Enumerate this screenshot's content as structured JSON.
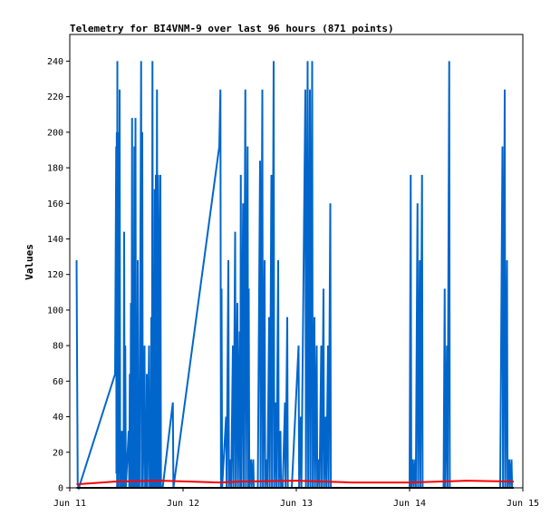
{
  "chart_data": {
    "type": "line",
    "title": "Telemetry for BI4VNM-9 over last 96 hours (871 points)",
    "xlabel": "",
    "ylabel": "Values",
    "x_range": [
      "2023-06-11",
      "2023-06-15"
    ],
    "x_ticks": [
      "Jun 11",
      "Jun 12",
      "Jun 13",
      "Jun 14",
      "Jun 15"
    ],
    "ylim": [
      0,
      255
    ],
    "y_ticks": [
      0,
      20,
      40,
      60,
      80,
      100,
      120,
      140,
      160,
      180,
      200,
      220,
      240
    ],
    "grid": false,
    "legend": "none",
    "series": [
      {
        "color": "#0066cc",
        "x_unit": "days since Jun 11",
        "points": [
          [
            0.06,
            128
          ],
          [
            0.07,
            2
          ],
          [
            0.08,
            0
          ],
          [
            0.4,
            64
          ],
          [
            0.41,
            192
          ],
          [
            0.412,
            8
          ],
          [
            0.415,
            200
          ],
          [
            0.418,
            0
          ],
          [
            0.42,
            240
          ],
          [
            0.423,
            4
          ],
          [
            0.425,
            160
          ],
          [
            0.428,
            0
          ],
          [
            0.432,
            200
          ],
          [
            0.435,
            8
          ],
          [
            0.44,
            224
          ],
          [
            0.445,
            0
          ],
          [
            0.45,
            16
          ],
          [
            0.455,
            0
          ],
          [
            0.46,
            32
          ],
          [
            0.465,
            0
          ],
          [
            0.47,
            16
          ],
          [
            0.475,
            0
          ],
          [
            0.48,
            144
          ],
          [
            0.485,
            0
          ],
          [
            0.49,
            80
          ],
          [
            0.495,
            0
          ],
          [
            0.52,
            32
          ],
          [
            0.525,
            0
          ],
          [
            0.53,
            64
          ],
          [
            0.535,
            0
          ],
          [
            0.54,
            104
          ],
          [
            0.545,
            0
          ],
          [
            0.55,
            208
          ],
          [
            0.555,
            0
          ],
          [
            0.56,
            80
          ],
          [
            0.565,
            0
          ],
          [
            0.57,
            192
          ],
          [
            0.575,
            0
          ],
          [
            0.58,
            208
          ],
          [
            0.585,
            0
          ],
          [
            0.59,
            80
          ],
          [
            0.595,
            0
          ],
          [
            0.6,
            128
          ],
          [
            0.605,
            0
          ],
          [
            0.61,
            16
          ],
          [
            0.615,
            0
          ],
          [
            0.63,
            240
          ],
          [
            0.635,
            0
          ],
          [
            0.64,
            200
          ],
          [
            0.645,
            0
          ],
          [
            0.66,
            80
          ],
          [
            0.665,
            0
          ],
          [
            0.67,
            16
          ],
          [
            0.675,
            0
          ],
          [
            0.68,
            64
          ],
          [
            0.685,
            0
          ],
          [
            0.7,
            80
          ],
          [
            0.705,
            0
          ],
          [
            0.71,
            16
          ],
          [
            0.715,
            0
          ],
          [
            0.72,
            96
          ],
          [
            0.725,
            0
          ],
          [
            0.73,
            240
          ],
          [
            0.735,
            0
          ],
          [
            0.74,
            80
          ],
          [
            0.745,
            0
          ],
          [
            0.75,
            168
          ],
          [
            0.755,
            0
          ],
          [
            0.76,
            176
          ],
          [
            0.765,
            0
          ],
          [
            0.77,
            224
          ],
          [
            0.775,
            0
          ],
          [
            0.78,
            176
          ],
          [
            0.785,
            128
          ],
          [
            0.79,
            0
          ],
          [
            0.8,
            176
          ],
          [
            0.805,
            0
          ],
          [
            0.82,
            0
          ],
          [
            0.91,
            48
          ],
          [
            0.915,
            0
          ],
          [
            1.32,
            192
          ],
          [
            1.33,
            224
          ],
          [
            1.335,
            0
          ],
          [
            1.34,
            112
          ],
          [
            1.345,
            0
          ],
          [
            1.38,
            40
          ],
          [
            1.385,
            0
          ],
          [
            1.4,
            128
          ],
          [
            1.405,
            0
          ],
          [
            1.42,
            16
          ],
          [
            1.425,
            0
          ],
          [
            1.44,
            80
          ],
          [
            1.445,
            0
          ],
          [
            1.46,
            144
          ],
          [
            1.465,
            0
          ],
          [
            1.48,
            104
          ],
          [
            1.485,
            0
          ],
          [
            1.5,
            88
          ],
          [
            1.505,
            0
          ],
          [
            1.51,
            176
          ],
          [
            1.515,
            0
          ],
          [
            1.53,
            160
          ],
          [
            1.535,
            0
          ],
          [
            1.55,
            224
          ],
          [
            1.555,
            0
          ],
          [
            1.57,
            192
          ],
          [
            1.575,
            0
          ],
          [
            1.58,
            112
          ],
          [
            1.585,
            0
          ],
          [
            1.6,
            16
          ],
          [
            1.605,
            0
          ],
          [
            1.62,
            16
          ],
          [
            1.625,
            0
          ],
          [
            1.64,
            0
          ],
          [
            1.66,
            0
          ],
          [
            1.68,
            184
          ],
          [
            1.685,
            0
          ],
          [
            1.7,
            224
          ],
          [
            1.705,
            0
          ],
          [
            1.72,
            128
          ],
          [
            1.725,
            0
          ],
          [
            1.74,
            16
          ],
          [
            1.745,
            0
          ],
          [
            1.76,
            96
          ],
          [
            1.765,
            0
          ],
          [
            1.78,
            176
          ],
          [
            1.785,
            0
          ],
          [
            1.8,
            240
          ],
          [
            1.805,
            0
          ],
          [
            1.82,
            48
          ],
          [
            1.825,
            0
          ],
          [
            1.84,
            128
          ],
          [
            1.845,
            0
          ],
          [
            1.86,
            32
          ],
          [
            1.865,
            0
          ],
          [
            1.88,
            0
          ],
          [
            1.9,
            48
          ],
          [
            1.905,
            0
          ],
          [
            1.92,
            96
          ],
          [
            1.925,
            0
          ],
          [
            1.96,
            0
          ],
          [
            2.02,
            80
          ],
          [
            2.025,
            0
          ],
          [
            2.04,
            40
          ],
          [
            2.045,
            0
          ],
          [
            2.08,
            224
          ],
          [
            2.085,
            0
          ],
          [
            2.1,
            240
          ],
          [
            2.105,
            0
          ],
          [
            2.12,
            224
          ],
          [
            2.125,
            0
          ],
          [
            2.14,
            240
          ],
          [
            2.145,
            0
          ],
          [
            2.16,
            96
          ],
          [
            2.165,
            0
          ],
          [
            2.18,
            80
          ],
          [
            2.185,
            0
          ],
          [
            2.2,
            16
          ],
          [
            2.205,
            0
          ],
          [
            2.22,
            80
          ],
          [
            2.225,
            0
          ],
          [
            2.24,
            112
          ],
          [
            2.245,
            0
          ],
          [
            2.26,
            40
          ],
          [
            2.265,
            0
          ],
          [
            2.28,
            80
          ],
          [
            2.285,
            0
          ],
          [
            2.3,
            160
          ],
          [
            2.305,
            0
          ],
          [
            2.32,
            0
          ],
          [
            3.0,
            0
          ],
          [
            3.01,
            176
          ],
          [
            3.015,
            0
          ],
          [
            3.03,
            16
          ],
          [
            3.035,
            0
          ],
          [
            3.05,
            16
          ],
          [
            3.055,
            0
          ],
          [
            3.07,
            160
          ],
          [
            3.075,
            0
          ],
          [
            3.09,
            128
          ],
          [
            3.095,
            0
          ],
          [
            3.11,
            176
          ],
          [
            3.115,
            0
          ],
          [
            3.13,
            0
          ],
          [
            3.3,
            0
          ],
          [
            3.31,
            112
          ],
          [
            3.315,
            0
          ],
          [
            3.33,
            80
          ],
          [
            3.335,
            0
          ],
          [
            3.35,
            240
          ],
          [
            3.355,
            0
          ],
          [
            3.37,
            0
          ],
          [
            3.8,
            0
          ],
          [
            3.82,
            192
          ],
          [
            3.825,
            0
          ],
          [
            3.84,
            224
          ],
          [
            3.845,
            0
          ],
          [
            3.86,
            128
          ],
          [
            3.865,
            0
          ],
          [
            3.88,
            16
          ],
          [
            3.885,
            0
          ],
          [
            3.9,
            16
          ],
          [
            3.905,
            0
          ],
          [
            3.92,
            0
          ]
        ]
      },
      {
        "color": "#ff0000",
        "x_unit": "days since Jun 11",
        "points": [
          [
            0.06,
            2
          ],
          [
            0.4,
            3.5
          ],
          [
            0.8,
            4
          ],
          [
            1.32,
            3
          ],
          [
            1.5,
            3.5
          ],
          [
            2.0,
            4
          ],
          [
            2.5,
            3
          ],
          [
            3.0,
            3
          ],
          [
            3.5,
            4
          ],
          [
            3.92,
            3.5
          ]
        ]
      },
      {
        "color": "#000000",
        "x_unit": "days since Jun 11",
        "points": [
          [
            0.06,
            0
          ],
          [
            3.92,
            0
          ]
        ]
      }
    ]
  }
}
